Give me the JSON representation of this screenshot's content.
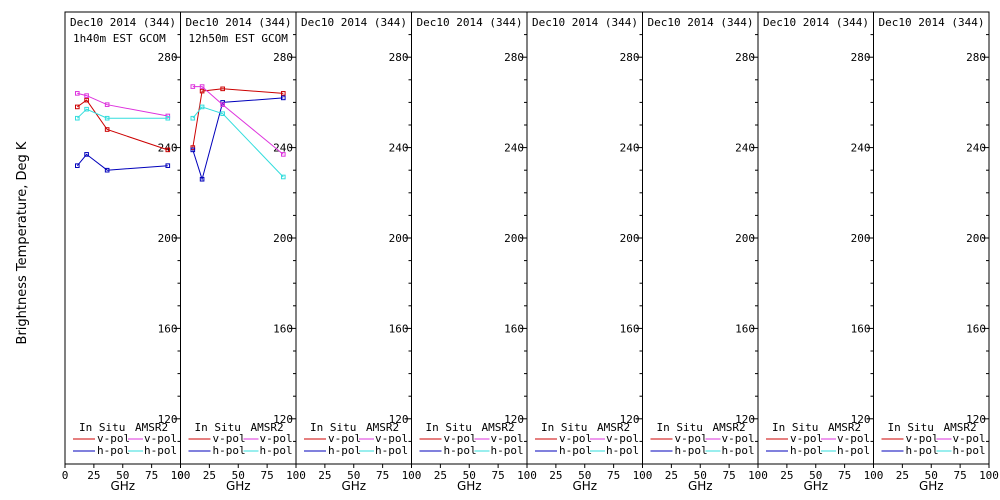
{
  "y_axis_label": "Brightness Temperature, Deg K",
  "legend": {
    "in_situ_label": "In Situ",
    "amsr2_label": "AMSR2",
    "vpol_label": "v-pol",
    "hpol_label": "h-pol",
    "colors": {
      "in_situ_vpol": "#cc0000",
      "in_situ_hpol": "#0000bb",
      "amsr2_vpol": "#dd33dd",
      "amsr2_hpol": "#33dddd"
    }
  },
  "chart_data": [
    {
      "type": "line",
      "title": "Dec10 2014 (344)",
      "subtitle": "1h40m EST GCOM",
      "xlabel": "GHz",
      "ylabel": "Brightness Temperature, Deg K",
      "xlim": [
        0,
        100
      ],
      "ylim": [
        100,
        300
      ],
      "xticks": [
        0,
        25,
        50,
        75,
        100
      ],
      "yticks": [
        120,
        160,
        200,
        240,
        280
      ],
      "series": [
        {
          "name": "In Situ v-pol",
          "color": "#cc0000",
          "x": [
            10.65,
            18.7,
            36.5,
            89
          ],
          "y": [
            258,
            261,
            248,
            239
          ]
        },
        {
          "name": "In Situ h-pol",
          "color": "#0000bb",
          "x": [
            10.65,
            18.7,
            36.5,
            89
          ],
          "y": [
            232,
            237,
            230,
            232
          ]
        },
        {
          "name": "AMSR2 v-pol",
          "color": "#dd33dd",
          "x": [
            10.65,
            18.7,
            36.5,
            89
          ],
          "y": [
            264,
            263,
            259,
            254
          ]
        },
        {
          "name": "AMSR2 h-pol",
          "color": "#33dddd",
          "x": [
            10.65,
            18.7,
            36.5,
            89
          ],
          "y": [
            253,
            257,
            253,
            253
          ]
        }
      ]
    },
    {
      "type": "line",
      "title": "Dec10 2014 (344)",
      "subtitle": "12h50m EST GCOM",
      "xlabel": "GHz",
      "ylabel": "",
      "xlim": [
        0,
        100
      ],
      "ylim": [
        100,
        300
      ],
      "xticks": [
        0,
        25,
        50,
        75,
        100
      ],
      "yticks": [
        120,
        160,
        200,
        240,
        280
      ],
      "series": [
        {
          "name": "In Situ v-pol",
          "color": "#cc0000",
          "x": [
            10.65,
            18.7,
            36.5,
            89
          ],
          "y": [
            240,
            265,
            266,
            264
          ]
        },
        {
          "name": "In Situ h-pol",
          "color": "#0000bb",
          "x": [
            10.65,
            18.7,
            36.5,
            89
          ],
          "y": [
            239,
            226,
            260,
            262
          ]
        },
        {
          "name": "AMSR2 v-pol",
          "color": "#dd33dd",
          "x": [
            10.65,
            18.7,
            36.5,
            89
          ],
          "y": [
            267,
            267,
            259,
            237
          ]
        },
        {
          "name": "AMSR2 h-pol",
          "color": "#33dddd",
          "x": [
            10.65,
            18.7,
            36.5,
            89
          ],
          "y": [
            253,
            258,
            255,
            227
          ]
        }
      ]
    },
    {
      "type": "line",
      "title": "Dec10 2014 (344)",
      "subtitle": "",
      "xlabel": "GHz",
      "ylabel": "",
      "xlim": [
        0,
        100
      ],
      "ylim": [
        100,
        300
      ],
      "xticks": [
        25,
        50,
        75,
        100
      ],
      "yticks": [
        120,
        160,
        200,
        240,
        280
      ],
      "series": []
    },
    {
      "type": "line",
      "title": "Dec10 2014 (344)",
      "subtitle": "",
      "xlabel": "GHz",
      "ylabel": "",
      "xlim": [
        0,
        100
      ],
      "ylim": [
        100,
        300
      ],
      "xticks": [
        25,
        50,
        75,
        100
      ],
      "yticks": [
        120,
        160,
        200,
        240,
        280
      ],
      "series": []
    },
    {
      "type": "line",
      "title": "Dec10 2014 (344)",
      "subtitle": "",
      "xlabel": "GHz",
      "ylabel": "",
      "xlim": [
        0,
        100
      ],
      "ylim": [
        100,
        300
      ],
      "xticks": [
        25,
        50,
        75,
        100
      ],
      "yticks": [
        120,
        160,
        200,
        240,
        280
      ],
      "series": []
    },
    {
      "type": "line",
      "title": "Dec10 2014 (344)",
      "subtitle": "",
      "xlabel": "GHz",
      "ylabel": "",
      "xlim": [
        0,
        100
      ],
      "ylim": [
        100,
        300
      ],
      "xticks": [
        25,
        50,
        75,
        100
      ],
      "yticks": [
        120,
        160,
        200,
        240,
        280
      ],
      "series": []
    },
    {
      "type": "line",
      "title": "Dec10 2014 (344)",
      "subtitle": "",
      "xlabel": "GHz",
      "ylabel": "",
      "xlim": [
        0,
        100
      ],
      "ylim": [
        100,
        300
      ],
      "xticks": [
        25,
        50,
        75,
        100
      ],
      "yticks": [
        120,
        160,
        200,
        240,
        280
      ],
      "series": []
    },
    {
      "type": "line",
      "title": "Dec10 2014 (344)",
      "subtitle": "",
      "xlabel": "GHz",
      "ylabel": "",
      "xlim": [
        0,
        100
      ],
      "ylim": [
        100,
        300
      ],
      "xticks": [
        25,
        50,
        75,
        100
      ],
      "yticks": [
        120,
        160,
        200,
        240,
        280
      ],
      "series": []
    }
  ]
}
